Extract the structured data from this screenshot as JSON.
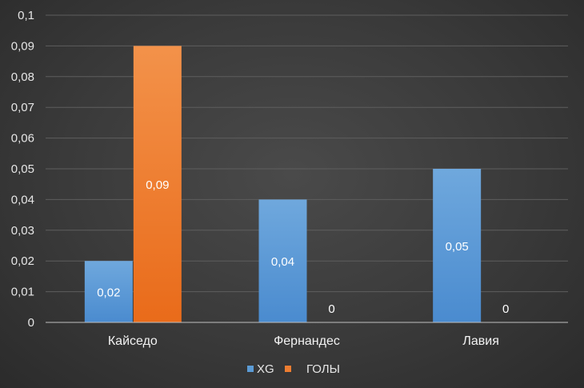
{
  "chart_data": {
    "type": "bar",
    "categories": [
      "Кайседо",
      "Фернандес",
      "Лавия"
    ],
    "series": [
      {
        "name": "XG",
        "values": [
          0.02,
          0.04,
          0.05
        ],
        "labels": [
          "0,02",
          "0,04",
          "0,05"
        ],
        "color": "#5b9bd5"
      },
      {
        "name": "ГОЛЫ",
        "values": [
          0.09,
          0,
          0
        ],
        "labels": [
          "0,09",
          "0",
          "0"
        ],
        "color": "#ed7d31"
      }
    ],
    "yticks": [
      "0",
      "0,01",
      "0,02",
      "0,03",
      "0,04",
      "0,05",
      "0,06",
      "0,07",
      "0,08",
      "0,09",
      "0,1"
    ],
    "ylim": [
      0,
      0.1
    ],
    "grid": true,
    "legend": "bottom"
  }
}
